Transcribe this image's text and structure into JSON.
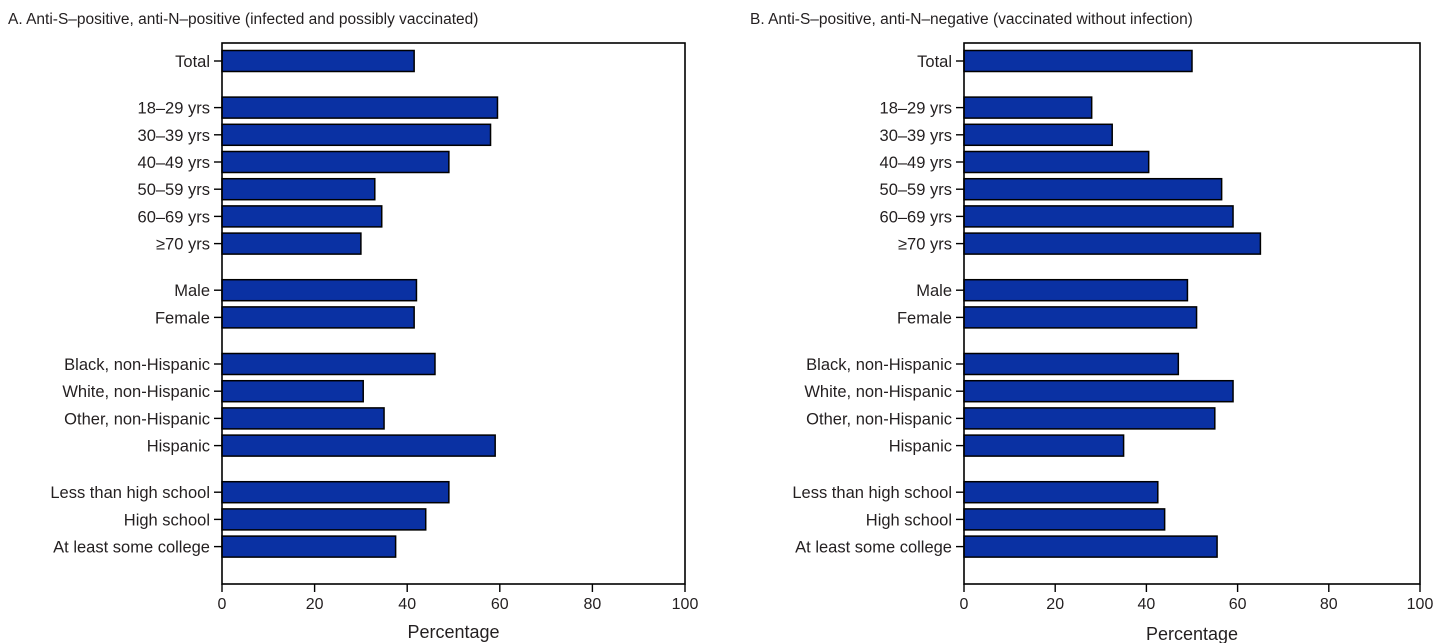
{
  "chart_data": [
    {
      "type": "bar",
      "orientation": "horizontal",
      "title": "A. Anti-S–positive, anti-N–positive (infected and possibly vaccinated)",
      "xlabel": "Percentage",
      "ylabel": "",
      "xlim": [
        0,
        100
      ],
      "xticks": [
        "0",
        "20",
        "40",
        "60",
        "80",
        "100"
      ],
      "grid": false,
      "legend": "none",
      "bar_color": "#0a31a3",
      "categories": [
        "Total",
        "18–29 yrs",
        "30–39 yrs",
        "40–49 yrs",
        "50–59 yrs",
        "60–69 yrs",
        "≥70 yrs",
        "Male",
        "Female",
        "Black, non-Hispanic",
        "White, non-Hispanic",
        "Other, non-Hispanic",
        "Hispanic",
        "Less than high school",
        "High school",
        "At least some college"
      ],
      "groups": [
        1,
        2,
        2,
        2,
        2,
        2,
        2,
        3,
        3,
        4,
        4,
        4,
        4,
        5,
        5,
        5
      ],
      "values": [
        41.5,
        59.5,
        58,
        49,
        33,
        34.5,
        30,
        42,
        41.5,
        46,
        30.5,
        35,
        59,
        49,
        44,
        37.5
      ]
    },
    {
      "type": "bar",
      "orientation": "horizontal",
      "title": "B. Anti-S–positive, anti-N–negative (vaccinated without infection)",
      "xlabel": "Percentage",
      "ylabel": "",
      "xlim": [
        0,
        100
      ],
      "xticks": [
        "0",
        "20",
        "40",
        "60",
        "80",
        "100"
      ],
      "grid": false,
      "legend": "none",
      "bar_color": "#0a31a3",
      "categories": [
        "Total",
        "18–29 yrs",
        "30–39 yrs",
        "40–49 yrs",
        "50–59 yrs",
        "60–69 yrs",
        "≥70 yrs",
        "Male",
        "Female",
        "Black, non-Hispanic",
        "White, non-Hispanic",
        "Other, non-Hispanic",
        "Hispanic",
        "Less than high school",
        "High school",
        "At least some college"
      ],
      "groups": [
        1,
        2,
        2,
        2,
        2,
        2,
        2,
        3,
        3,
        4,
        4,
        4,
        4,
        5,
        5,
        5
      ],
      "values": [
        50,
        28,
        32.5,
        40.5,
        56.5,
        59,
        65,
        49,
        51,
        47,
        59,
        55,
        35,
        42.5,
        44,
        55.5
      ]
    }
  ]
}
